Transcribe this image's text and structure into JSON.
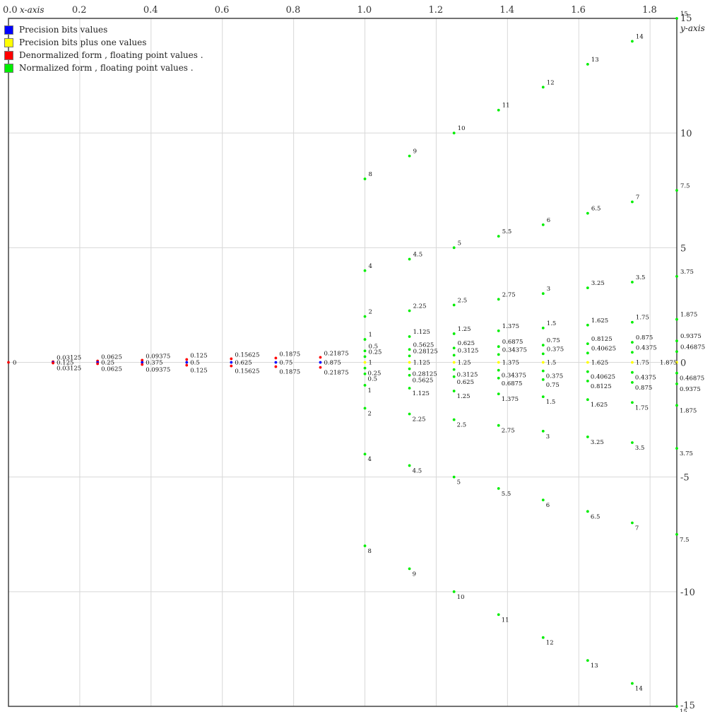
{
  "chart_data": {
    "type": "scatter",
    "x_axis_label": "x-axis",
    "y_axis_label": "y-axis",
    "xlim": [
      0,
      1.875
    ],
    "ylim": [
      -15,
      15
    ],
    "x_ticks": [
      "0.0",
      "0.2",
      "0.4",
      "0.6",
      "0.8",
      "1.0",
      "1.2",
      "1.4",
      "1.6",
      "1.8"
    ],
    "y_ticks": [
      "15",
      "10",
      "5",
      "0",
      "-5",
      "-10",
      "-15"
    ],
    "grid": true,
    "legend_position": "top-left",
    "colors": {
      "precision": "#0000ff",
      "precision_plus_one": "#ffff00",
      "denormalized": "#ff0000",
      "normalized": "#00ee00"
    },
    "legend": [
      {
        "label": "Precision bits values",
        "color": "#0000ff"
      },
      {
        "label": "Precision bits plus one values",
        "color": "#ffff00"
      },
      {
        "label": "Denormalized form , floating point values .",
        "color": "#ff0000"
      },
      {
        "label": "Normalized form , floating point values .",
        "color": "#00ee00"
      }
    ],
    "denormalized": {
      "x": [
        0,
        0.125,
        0.25,
        0.375,
        0.5,
        0.625,
        0.75,
        0.875
      ],
      "fractions": [
        0.03125,
        0.0625,
        0.09375,
        0.125,
        0.15625,
        0.1875,
        0.21875
      ]
    },
    "normalized": {
      "x": [
        1,
        1.125,
        1.25,
        1.375,
        1.5,
        1.625,
        1.75,
        1.875
      ],
      "scales": [
        8,
        4,
        2,
        1,
        0.5,
        0.25
      ]
    }
  }
}
